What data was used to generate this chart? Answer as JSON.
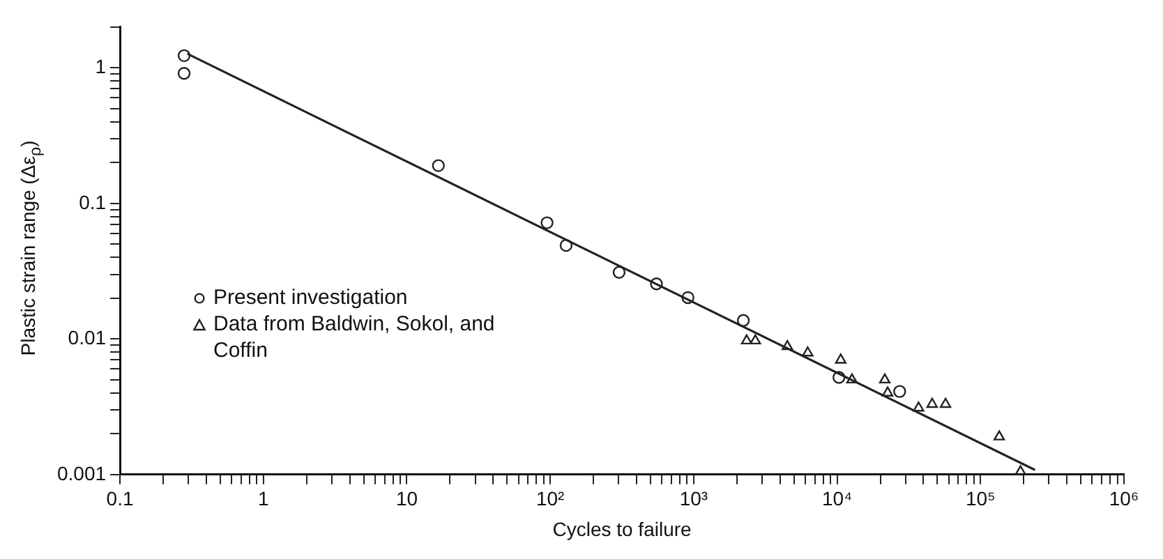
{
  "chart_data": {
    "type": "scatter",
    "xlabel": "Cycles to failure",
    "ylabel": "Plastic strain range (Δε$_{ρ}$)",
    "log": "xy",
    "grid": false,
    "legend": "left",
    "xlim": [
      0.1,
      1000000
    ],
    "ylim": [
      0.001,
      2
    ],
    "xticks": [
      0.1,
      {
        "value": 0.2,
        "label": null
      },
      {
        "value": 0.3,
        "label": null
      },
      {
        "value": 0.4,
        "label": null
      },
      {
        "value": 0.5,
        "label": null
      },
      {
        "value": 0.6,
        "label": null
      },
      {
        "value": 0.7,
        "label": null
      },
      {
        "value": 0.8,
        "label": null
      },
      {
        "value": 0.9,
        "label": null
      },
      1,
      {
        "value": 2,
        "label": null
      },
      {
        "value": 3,
        "label": null
      },
      {
        "value": 4,
        "label": null
      },
      {
        "value": 5,
        "label": null
      },
      {
        "value": 6,
        "label": null
      },
      {
        "value": 7,
        "label": null
      },
      {
        "value": 8,
        "label": null
      },
      {
        "value": 9,
        "label": null
      },
      10,
      {
        "value": 20,
        "label": null
      },
      {
        "value": 30,
        "label": null
      },
      {
        "value": 40,
        "label": null
      },
      {
        "value": 50,
        "label": null
      },
      {
        "value": 60,
        "label": null
      },
      {
        "value": 70,
        "label": null
      },
      {
        "value": 80,
        "label": null
      },
      {
        "value": 90,
        "label": null
      },
      {
        "value": 100,
        "label": "10²"
      },
      {
        "value": 200,
        "label": null
      },
      {
        "value": 300,
        "label": null
      },
      {
        "value": 400,
        "label": null
      },
      {
        "value": 500,
        "label": null
      },
      {
        "value": 600,
        "label": null
      },
      {
        "value": 700,
        "label": null
      },
      {
        "value": 800,
        "label": null
      },
      {
        "value": 900,
        "label": null
      },
      {
        "value": 1000,
        "label": "10³"
      },
      {
        "value": 2000,
        "label": null
      },
      {
        "value": 3000,
        "label": null
      },
      {
        "value": 4000,
        "label": null
      },
      {
        "value": 5000,
        "label": null
      },
      {
        "value": 6000,
        "label": null
      },
      {
        "value": 7000,
        "label": null
      },
      {
        "value": 8000,
        "label": null
      },
      {
        "value": 9000,
        "label": null
      },
      {
        "value": 10000,
        "label": "10⁴"
      },
      {
        "value": 20000,
        "label": null
      },
      {
        "value": 30000,
        "label": null
      },
      {
        "value": 40000,
        "label": null
      },
      {
        "value": 50000,
        "label": null
      },
      {
        "value": 60000,
        "label": null
      },
      {
        "value": 70000,
        "label": null
      },
      {
        "value": 80000,
        "label": null
      },
      {
        "value": 90000,
        "label": null
      },
      {
        "value": 100000,
        "label": "10⁵"
      },
      {
        "value": 200000,
        "label": null
      },
      {
        "value": 300000,
        "label": null
      },
      {
        "value": 400000,
        "label": null
      },
      {
        "value": 500000,
        "label": null
      },
      {
        "value": 600000,
        "label": null
      },
      {
        "value": 700000,
        "label": null
      },
      {
        "value": 800000,
        "label": null
      },
      {
        "value": 900000,
        "label": null
      },
      {
        "value": 1000000,
        "label": "10⁶"
      }
    ],
    "yticks": [
      0.001,
      {
        "value": 0.002,
        "label": null
      },
      {
        "value": 0.003,
        "label": null
      },
      {
        "value": 0.004,
        "label": null
      },
      {
        "value": 0.005,
        "label": null
      },
      {
        "value": 0.006,
        "label": null
      },
      {
        "value": 0.007,
        "label": null
      },
      {
        "value": 0.008,
        "label": null
      },
      {
        "value": 0.009,
        "label": null
      },
      0.01,
      {
        "value": 0.02,
        "label": null
      },
      {
        "value": 0.03,
        "label": null
      },
      {
        "value": 0.04,
        "label": null
      },
      {
        "value": 0.05,
        "label": null
      },
      {
        "value": 0.06,
        "label": null
      },
      {
        "value": 0.07,
        "label": null
      },
      {
        "value": 0.08,
        "label": null
      },
      {
        "value": 0.09,
        "label": null
      },
      0.1,
      {
        "value": 0.2,
        "label": null
      },
      {
        "value": 0.3,
        "label": null
      },
      {
        "value": 0.4,
        "label": null
      },
      {
        "value": 0.5,
        "label": null
      },
      {
        "value": 0.6,
        "label": null
      },
      {
        "value": 0.7,
        "label": null
      },
      {
        "value": 0.8,
        "label": null
      },
      {
        "value": 0.9,
        "label": null
      },
      1,
      {
        "value": 2,
        "label": null
      }
    ],
    "series": [
      {
        "name": "Present investigation",
        "type": "scatter",
        "marker": "circle",
        "color": "#222222",
        "x": [
          0.28,
          0.28,
          16.6,
          95,
          129,
          302,
          550,
          912,
          2220,
          10300,
          27300
        ],
        "values": [
          1.23,
          0.91,
          0.19,
          0.072,
          0.049,
          0.031,
          0.0255,
          0.0202,
          0.0137,
          0.0052,
          0.0041
        ]
      },
      {
        "name": "Data from Baldwin, Sokol, and Coffin",
        "type": "scatter",
        "marker": "triangle",
        "color": "#222222",
        "x": [
          2340,
          2690,
          4500,
          6240,
          10600,
          12700,
          21500,
          22500,
          37000,
          46000,
          57000,
          135000,
          190000
        ],
        "values": [
          0.0097,
          0.0097,
          0.0088,
          0.0079,
          0.007,
          0.005,
          0.005,
          0.004,
          0.0031,
          0.0033,
          0.0033,
          0.0019,
          0.00105
        ]
      },
      {
        "type": "line",
        "marker": "none",
        "color": "#222222",
        "x": [
          0.295,
          240000
        ],
        "values": [
          1.27,
          0.00108
        ]
      }
    ]
  }
}
